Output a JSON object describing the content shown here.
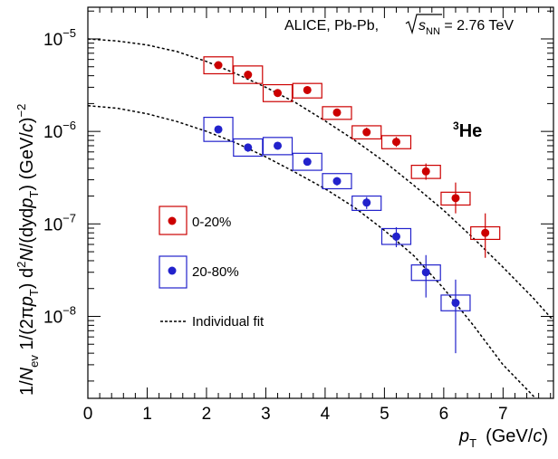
{
  "chart_data": {
    "type": "scatter",
    "xscale": "linear",
    "yscale": "log",
    "xlim": [
      0,
      7.85
    ],
    "ylim": [
      1.3e-09,
      2.2e-05
    ],
    "xticks_major": [
      0,
      1,
      2,
      3,
      4,
      5,
      6,
      7
    ],
    "xtick_labels": [
      "0",
      "1",
      "2",
      "3",
      "4",
      "5",
      "6",
      "7"
    ],
    "ytick_labels": [
      {
        "base": "10",
        "exp": "−5",
        "value": 1e-05
      },
      {
        "base": "10",
        "exp": "−6",
        "value": 1e-06
      },
      {
        "base": "10",
        "exp": "−7",
        "value": 1e-07
      },
      {
        "base": "10",
        "exp": "−8",
        "value": 1e-08
      }
    ],
    "xlabel": {
      "var": "p",
      "sub": "T",
      "unit": "(GeV/",
      "unit_var": "c",
      "unit_end": ")"
    },
    "ylabel": {
      "p1": "1/",
      "p1_var": "N",
      "p1_sub": "ev",
      "p2": " 1/(2π",
      "p2_var": "p",
      "p2_sub": "T",
      "p2_end": ")",
      "p3": "  d",
      "p3_sup": "2",
      "p3_var": "N",
      "p3_mid": "/(dyd",
      "p3_var2": "p",
      "p3_sub": "T",
      "p3_end": ")",
      "unit": "  (GeV/",
      "unit_var": "c",
      "unit_end": ")",
      "unit_sup": "−2"
    },
    "annotation": {
      "text": "ALICE, Pb-Pb, ",
      "sqrt": "s",
      "sub": "NN",
      "rest": " = 2.76 TeV"
    },
    "species_label": {
      "sup": "3",
      "text": "He"
    },
    "legend": [
      {
        "label": "0-20%",
        "color": "#cc0000",
        "marker": "circle-box"
      },
      {
        "label": "20-80%",
        "color": "#2222cc",
        "marker": "circle-box"
      },
      {
        "label": "Individual fit",
        "marker": "dashed-line"
      }
    ],
    "series": [
      {
        "name": "0-20%",
        "color": "#cc0000",
        "x": [
          2.2,
          2.7,
          3.2,
          3.7,
          4.2,
          4.7,
          5.2,
          5.7,
          6.2,
          6.7
        ],
        "y": [
          5.2e-06,
          4.1e-06,
          2.6e-06,
          2.8e-06,
          1.6e-06,
          9.8e-07,
          7.7e-07,
          3.7e-07,
          1.9e-07,
          8e-08
        ],
        "stat_err_lo": [
          5.2e-06,
          4.1e-06,
          2.6e-06,
          2.8e-06,
          1.55e-06,
          9e-07,
          6.8e-07,
          3e-07,
          1.3e-07,
          4.3e-08
        ],
        "stat_err_hi": [
          5.2e-06,
          4.1e-06,
          2.6e-06,
          2.8e-06,
          1.65e-06,
          1.1e-06,
          8.7e-07,
          4.5e-07,
          2.8e-07,
          1.3e-07
        ],
        "sys_lo": [
          4.2e-06,
          3.3e-06,
          2.1e-06,
          2.3e-06,
          1.35e-06,
          8.3e-07,
          6.5e-07,
          3.1e-07,
          1.6e-07,
          6.8e-08
        ],
        "sys_hi": [
          6.4e-06,
          5.1e-06,
          3.2e-06,
          3.3e-06,
          1.85e-06,
          1.15e-06,
          9e-07,
          4.3e-07,
          2.2e-07,
          9.3e-08
        ]
      },
      {
        "name": "20-80%",
        "color": "#2222cc",
        "x": [
          2.2,
          2.7,
          3.2,
          3.7,
          4.2,
          4.7,
          5.2,
          5.7,
          6.2
        ],
        "y": [
          1.05e-06,
          6.7e-07,
          7e-07,
          4.7e-07,
          2.9e-07,
          1.7e-07,
          7.3e-08,
          3e-08,
          1.4e-08
        ],
        "stat_err_lo": [
          1.05e-06,
          6e-07,
          6.4e-07,
          4.3e-07,
          2.6e-07,
          1.45e-07,
          5.6e-08,
          1.6e-08,
          4e-09
        ],
        "stat_err_hi": [
          1.05e-06,
          7.4e-07,
          7.6e-07,
          5.1e-07,
          3.2e-07,
          1.95e-07,
          9.2e-08,
          4.6e-08,
          2.5e-08
        ],
        "sys_lo": [
          7.8e-07,
          5.4e-07,
          5.6e-07,
          3.8e-07,
          2.4e-07,
          1.4e-07,
          6e-08,
          2.45e-08,
          1.15e-08
        ],
        "sys_hi": [
          1.42e-06,
          8.3e-07,
          8.6e-07,
          5.8e-07,
          3.5e-07,
          2e-07,
          8.9e-08,
          3.6e-08,
          1.7e-08
        ]
      }
    ],
    "fits": [
      {
        "name": "0-20%",
        "x": [
          0,
          0.5,
          1.0,
          1.5,
          2.0,
          2.5,
          3.0,
          3.5,
          4.0,
          4.5,
          5.0,
          5.5,
          6.0,
          6.5,
          7.0,
          7.5,
          7.85
        ],
        "y": [
          1e-05,
          9.5e-06,
          8.6e-06,
          7.3e-06,
          5.7e-06,
          4.2e-06,
          3e-06,
          2.05e-06,
          1.3e-06,
          8e-07,
          4.7e-07,
          2.6e-07,
          1.4e-07,
          7e-08,
          3.4e-08,
          1.6e-08,
          9e-09
        ]
      },
      {
        "name": "20-80%",
        "x": [
          0,
          0.5,
          1.0,
          1.5,
          2.0,
          2.5,
          3.0,
          3.5,
          4.0,
          4.5,
          5.0,
          5.5,
          6.0,
          6.5,
          7.0,
          7.5,
          7.7
        ],
        "y": [
          1.9e-06,
          1.78e-06,
          1.55e-06,
          1.28e-06,
          1e-06,
          7.5e-07,
          5.3e-07,
          3.6e-07,
          2.4e-07,
          1.5e-07,
          8.5e-08,
          4.5e-08,
          2e-08,
          8e-09,
          3e-09,
          1.4e-09,
          1e-09
        ]
      }
    ]
  }
}
